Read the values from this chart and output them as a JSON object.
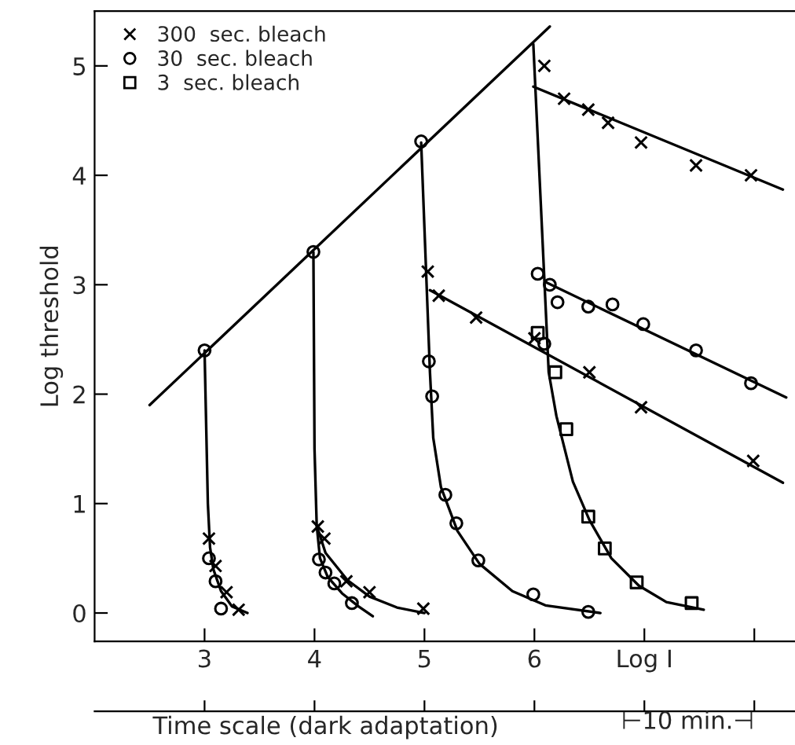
{
  "chart_data": {
    "type": "scatter",
    "ylabel": "Log threshold",
    "xlabel": "Log I",
    "x2label": "Time scale (dark adaptation)",
    "annotations": [
      "⊢10 min.⊣"
    ],
    "xlim": [
      2,
      8.37
    ],
    "ylim": [
      -0.26,
      5.5
    ],
    "xticks": [
      3,
      4,
      5,
      6,
      {
        "value": 7,
        "label": null
      },
      {
        "value": 8,
        "label": null
      }
    ],
    "yticks": [
      0,
      1,
      2,
      3,
      4,
      5
    ],
    "grid": false,
    "legend": "top left",
    "series": [
      {
        "name": "300  sec. bleach",
        "marker": "cross",
        "color": "#000000",
        "x": [
          6.09,
          6.27,
          6.49,
          6.67,
          6.97,
          7.47,
          7.97,
          5.03,
          5.13,
          5.47,
          6.0,
          6.5,
          6.97,
          7.99,
          3.04,
          3.1,
          3.2,
          3.31,
          4.03,
          4.09,
          4.29,
          4.5,
          4.99
        ],
        "values": [
          5.0,
          4.7,
          4.6,
          4.48,
          4.3,
          4.09,
          4.0,
          3.12,
          2.9,
          2.7,
          2.51,
          2.2,
          1.88,
          1.39,
          0.68,
          0.43,
          0.19,
          0.03,
          0.79,
          0.68,
          0.29,
          0.19,
          0.04
        ]
      },
      {
        "name": "30  sec. bleach",
        "marker": "circle",
        "color": "#000000",
        "x": [
          3.0,
          3.99,
          4.97,
          5.04,
          6.03,
          6.14,
          6.21,
          6.49,
          6.71,
          6.99,
          7.47,
          7.97,
          6.09,
          5.07,
          5.19,
          5.29,
          5.49,
          5.99,
          6.49,
          3.04,
          3.1,
          3.15,
          4.04,
          4.1,
          4.18,
          4.34
        ],
        "values": [
          2.4,
          3.3,
          4.31,
          2.3,
          3.1,
          3.0,
          2.84,
          2.8,
          2.82,
          2.64,
          2.4,
          2.1,
          2.46,
          1.98,
          1.08,
          0.82,
          0.48,
          0.17,
          0.01,
          0.5,
          0.29,
          0.04,
          0.49,
          0.37,
          0.27,
          0.09
        ]
      },
      {
        "name": "3  sec. bleach",
        "marker": "square",
        "color": "#000000",
        "x": [
          6.03,
          6.19,
          6.29,
          6.49,
          6.64,
          6.93,
          7.43
        ],
        "values": [
          2.56,
          2.2,
          1.68,
          0.88,
          0.59,
          0.28,
          0.09
        ]
      },
      {
        "type": "line",
        "color": "#000000",
        "x": [
          2.5,
          6.14
        ],
        "values": [
          1.9,
          5.36
        ]
      },
      {
        "type": "line",
        "color": "#000000",
        "x": [
          3.0,
          3.03,
          3.05,
          3.08,
          3.15,
          3.25,
          3.39
        ],
        "values": [
          2.4,
          1.0,
          0.6,
          0.4,
          0.2,
          0.06,
          0.0
        ]
      },
      {
        "type": "line",
        "color": "#000000",
        "x": [
          3.99,
          4.0,
          4.02,
          4.1,
          4.3,
          4.5,
          4.75,
          5.0
        ],
        "values": [
          3.3,
          1.5,
          0.8,
          0.55,
          0.3,
          0.15,
          0.05,
          0.0
        ]
      },
      {
        "type": "line",
        "color": "#000000",
        "x": [
          4.02,
          4.05,
          4.12,
          4.25,
          4.4,
          4.53
        ],
        "values": [
          0.8,
          0.5,
          0.33,
          0.18,
          0.06,
          -0.03
        ]
      },
      {
        "type": "line",
        "color": "#000000",
        "x": [
          4.97,
          5.05,
          5.08,
          5.15,
          5.3,
          5.5,
          5.8,
          6.1,
          6.6
        ],
        "values": [
          4.3,
          2.2,
          1.6,
          1.15,
          0.75,
          0.45,
          0.2,
          0.07,
          0.0
        ]
      },
      {
        "type": "line",
        "color": "#000000",
        "x": [
          5.05,
          8.26
        ],
        "values": [
          2.95,
          1.19
        ]
      },
      {
        "type": "line",
        "color": "#000000",
        "x": [
          5.99,
          6.13,
          6.2,
          6.35,
          6.5,
          6.7,
          6.95,
          7.2,
          7.54
        ],
        "values": [
          5.2,
          2.2,
          1.8,
          1.2,
          0.85,
          0.5,
          0.25,
          0.1,
          0.03
        ]
      },
      {
        "type": "line",
        "color": "#000000",
        "x": [
          5.99,
          8.26
        ],
        "values": [
          4.81,
          3.87
        ]
      },
      {
        "type": "line",
        "color": "#000000",
        "x": [
          6.11,
          8.29
        ],
        "values": [
          3.02,
          1.97
        ]
      }
    ]
  }
}
